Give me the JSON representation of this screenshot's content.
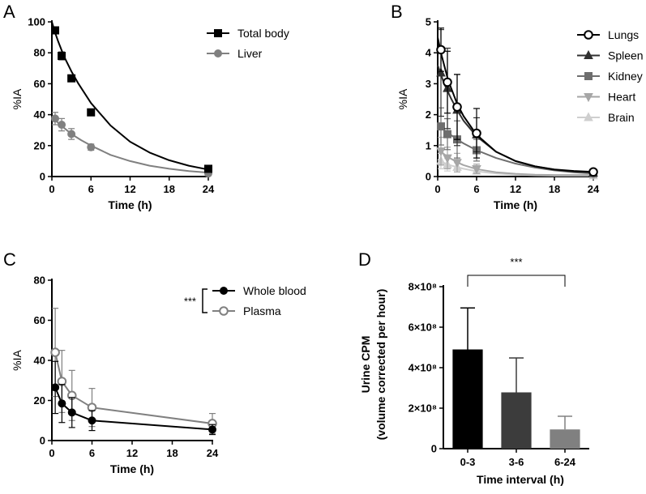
{
  "chart_data": [
    {
      "panel": "A",
      "type": "line",
      "xlabel": "Time (h)",
      "ylabel": "%IA",
      "xticks": [
        "0",
        "6",
        "12",
        "18",
        "24"
      ],
      "yticks": [
        "0",
        "20",
        "40",
        "60",
        "80",
        "100"
      ],
      "xlim": [
        0,
        24
      ],
      "ylim": [
        0,
        100
      ],
      "legend_position": "top-right",
      "series": [
        {
          "name": "Total body",
          "color": "#000000",
          "marker": "square",
          "filled": true,
          "x": [
            0.5,
            1.5,
            3,
            6,
            24
          ],
          "y": [
            94.5,
            78,
            63.5,
            41.5,
            5
          ],
          "err": [
            0,
            2.5,
            1.5,
            1,
            0
          ],
          "curve_x": [
            0,
            0.5,
            1,
            1.5,
            2,
            3,
            4,
            6,
            9,
            12,
            15,
            18,
            21,
            24
          ],
          "curve_y": [
            100,
            93,
            87,
            81.5,
            76.5,
            68,
            60.5,
            47.5,
            33,
            22.5,
            15.5,
            10.5,
            7,
            4.5
          ]
        },
        {
          "name": "Liver",
          "color": "#808080",
          "marker": "circle",
          "filled": true,
          "x": [
            0.5,
            1.5,
            3,
            6,
            24
          ],
          "y": [
            37.5,
            33.5,
            27.5,
            19,
            2
          ],
          "err": [
            4,
            4,
            3.5,
            2,
            0
          ],
          "curve_x": [
            0,
            1,
            2,
            3,
            4.5,
            6,
            9,
            12,
            15,
            18,
            21,
            24
          ],
          "curve_y": [
            39,
            34.5,
            31,
            27.5,
            23.5,
            20,
            14,
            10,
            7,
            5,
            3.5,
            2.5
          ]
        }
      ]
    },
    {
      "panel": "B",
      "type": "line",
      "xlabel": "Time (h)",
      "ylabel": "%IA",
      "xticks": [
        "0",
        "6",
        "12",
        "18",
        "24"
      ],
      "yticks": [
        "0",
        "1",
        "2",
        "3",
        "4",
        "5"
      ],
      "xlim": [
        0,
        24
      ],
      "ylim": [
        0,
        5
      ],
      "legend_position": "top-right",
      "series": [
        {
          "name": "Lungs",
          "color": "#000000",
          "marker": "circle",
          "filled": false,
          "x": [
            0.5,
            1.5,
            3,
            6,
            24
          ],
          "y": [
            4.1,
            3.05,
            2.25,
            1.4,
            0.15
          ],
          "err": [
            0.7,
            1.0,
            1.05,
            0.8,
            0
          ],
          "curve_x": [
            0,
            0.5,
            1,
            1.5,
            2,
            3,
            4,
            6,
            9,
            12,
            15,
            18,
            21,
            24
          ],
          "curve_y": [
            4.5,
            4.0,
            3.6,
            3.2,
            2.9,
            2.35,
            1.95,
            1.35,
            0.8,
            0.5,
            0.33,
            0.23,
            0.18,
            0.15
          ]
        },
        {
          "name": "Spleen",
          "color": "#303030",
          "marker": "triangle-up",
          "filled": true,
          "x": [
            0.5,
            1.5,
            3,
            6,
            24
          ],
          "y": [
            3.35,
            2.85,
            2.15,
            1.35,
            0.12
          ],
          "err": [
            1.4,
            1.3,
            1.15,
            0.55,
            0
          ],
          "curve_x": [
            0,
            0.5,
            1,
            2,
            3,
            4,
            6,
            9,
            12,
            15,
            18,
            21,
            24
          ],
          "curve_y": [
            3.6,
            3.3,
            3.0,
            2.55,
            2.15,
            1.8,
            1.3,
            0.8,
            0.5,
            0.33,
            0.22,
            0.16,
            0.13
          ]
        },
        {
          "name": "Kidney",
          "color": "#6e6e6e",
          "marker": "square",
          "filled": true,
          "x": [
            0.5,
            1.5,
            3,
            6,
            24
          ],
          "y": [
            1.62,
            1.37,
            1.2,
            0.85,
            0.1
          ],
          "err": [
            0.6,
            0.5,
            0.6,
            0.35,
            0
          ],
          "curve_x": [
            0,
            1,
            2,
            3,
            4,
            6,
            9,
            12,
            15,
            18,
            21,
            24
          ],
          "curve_y": [
            1.72,
            1.5,
            1.35,
            1.2,
            1.07,
            0.85,
            0.6,
            0.42,
            0.29,
            0.2,
            0.14,
            0.1
          ]
        },
        {
          "name": "Heart",
          "color": "#a6a6a6",
          "marker": "triangle-down",
          "filled": true,
          "x": [
            0.5,
            1.5,
            3,
            6,
            24
          ],
          "y": [
            0.82,
            0.6,
            0.45,
            0.25,
            0.05
          ],
          "err": [
            0.45,
            0.35,
            0.3,
            0.15,
            0
          ],
          "curve_x": [
            0,
            1,
            2,
            3,
            4,
            6,
            9,
            12,
            15,
            18,
            21,
            24
          ],
          "curve_y": [
            0.9,
            0.72,
            0.58,
            0.46,
            0.37,
            0.24,
            0.14,
            0.09,
            0.06,
            0.05,
            0.05,
            0.05
          ]
        },
        {
          "name": "Brain",
          "color": "#cfcfcf",
          "marker": "triangle-up",
          "filled": true,
          "x": [
            0.5,
            1.5,
            3,
            6,
            24
          ],
          "y": [
            0.5,
            0.38,
            0.3,
            0.18,
            0.03
          ],
          "err": [
            0.25,
            0.2,
            0.15,
            0.1,
            0
          ],
          "curve_x": [
            0,
            1,
            2,
            3,
            4,
            6,
            9,
            12,
            15,
            18,
            21,
            24
          ],
          "curve_y": [
            0.55,
            0.44,
            0.36,
            0.3,
            0.25,
            0.17,
            0.1,
            0.06,
            0.04,
            0.03,
            0.03,
            0.03
          ]
        }
      ]
    },
    {
      "panel": "C",
      "type": "line",
      "xlabel": "Time (h)",
      "ylabel": "%IA",
      "xticks": [
        "0",
        "6",
        "12",
        "18",
        "24"
      ],
      "yticks": [
        "0",
        "20",
        "40",
        "60",
        "80"
      ],
      "xlim": [
        0,
        24
      ],
      "ylim": [
        0,
        80
      ],
      "legend_position": "top-right",
      "significance": "***",
      "series": [
        {
          "name": "Whole blood",
          "color": "#000000",
          "marker": "circle",
          "filled": true,
          "x": [
            0.5,
            1.5,
            3,
            6,
            24
          ],
          "y": [
            26.5,
            18.5,
            14,
            10,
            5.5
          ],
          "err": [
            13,
            9.5,
            7.5,
            5,
            2.5
          ],
          "curve_x": [
            0.5,
            1.5,
            3,
            6,
            24
          ],
          "curve_y": [
            26.5,
            18.5,
            14,
            10,
            5.5
          ]
        },
        {
          "name": "Plasma",
          "color": "#808080",
          "marker": "circle",
          "filled": false,
          "x": [
            0.5,
            1.5,
            3,
            6,
            24
          ],
          "y": [
            44,
            29.5,
            22.5,
            16.5,
            8.5
          ],
          "err": [
            22,
            15.5,
            12.5,
            9.5,
            5
          ],
          "curve_x": [
            0.5,
            1.5,
            3,
            6,
            24
          ],
          "curve_y": [
            44,
            29.5,
            22.5,
            16.5,
            8.5
          ]
        }
      ]
    },
    {
      "panel": "D",
      "type": "bar",
      "xlabel": "Time interval (h)",
      "ylabel_line1": "Urine CPM",
      "ylabel_line2": "(volume corrected per hour)",
      "categories": [
        "0-3",
        "3-6",
        "6-24"
      ],
      "values": [
        490000000,
        278000000,
        95000000
      ],
      "err": [
        205000000,
        170000000,
        65000000
      ],
      "colors": [
        "#000000",
        "#3c3c3c",
        "#808080"
      ],
      "yticks": [
        "0",
        "2×10⁸",
        "4×10⁸",
        "6×10⁸",
        "8×10⁸"
      ],
      "ylim": [
        0,
        800000000
      ],
      "significance": "***",
      "significance_between": [
        "0-3",
        "6-24"
      ]
    }
  ]
}
